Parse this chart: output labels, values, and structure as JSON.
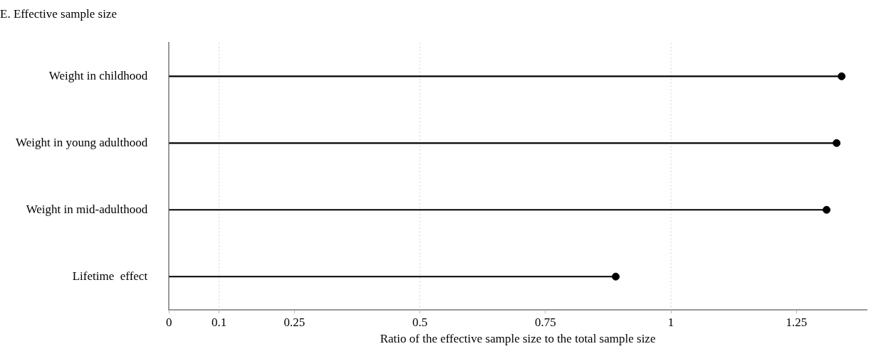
{
  "chart_data": {
    "type": "lollipop",
    "orientation": "horizontal",
    "title": "E. Effective sample size",
    "xlabel": "Ratio of the effective sample size to the total sample size",
    "categories": [
      "Weight in childhood",
      "Weight in young adulthood",
      "Weight in mid-adulthood",
      "Lifetime  effect"
    ],
    "values": [
      1.34,
      1.33,
      1.31,
      0.89
    ],
    "color": "#000000",
    "marker": "circle",
    "xlim": [
      0,
      1.39
    ],
    "xticks": [
      0,
      0.1,
      0.25,
      0.5,
      0.75,
      1,
      1.25
    ],
    "ref_lines": [
      {
        "axis": "x",
        "value": 0.1,
        "color": "#d0d0d0",
        "line_style": "dotted"
      },
      {
        "axis": "x",
        "value": 0.5,
        "color": "#d0d0d0",
        "line_style": "dotted"
      },
      {
        "axis": "x",
        "value": 1,
        "color": "#d0d0d0",
        "line_style": "dotted"
      }
    ]
  }
}
